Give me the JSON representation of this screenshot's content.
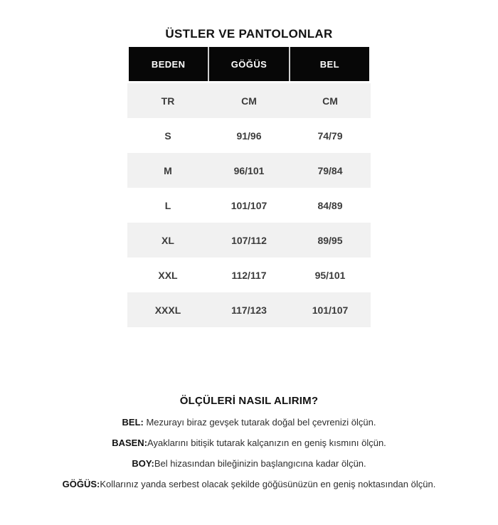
{
  "page": {
    "title": "ÜSTLER VE PANTOLONLAR"
  },
  "size_table": {
    "headers": [
      "BEDEN",
      "GÖĞÜS",
      "BEL"
    ],
    "unit_row": [
      "TR",
      "CM",
      "CM"
    ],
    "rows": [
      [
        "S",
        "91/96",
        "74/79"
      ],
      [
        "M",
        "96/101",
        "79/84"
      ],
      [
        "L",
        "101/107",
        "84/89"
      ],
      [
        "XL",
        "107/112",
        "89/95"
      ],
      [
        "XXL",
        "112/117",
        "95/101"
      ],
      [
        "XXXL",
        "117/123",
        "101/107"
      ]
    ]
  },
  "measurement_guide": {
    "heading": "ÖLÇÜLERİ NASIL ALIRIM?",
    "items": [
      {
        "label": "BEL:",
        "text": " Mezurayı biraz gevşek tutarak doğal bel çevrenizi ölçün."
      },
      {
        "label": "BASEN:",
        "text": "Ayaklarını bitişik tutarak kalçanızın en geniş kısmını ölçün."
      },
      {
        "label": "BOY:",
        "text": "Bel hizasından bileğinizin başlangıcına kadar ölçün."
      },
      {
        "label": "GÖĞÜS:",
        "text": "Kollarınız yanda serbest olacak şekilde göğüsünüzün en geniş noktasından ölçün."
      }
    ]
  },
  "colors": {
    "header_bg": "#070707",
    "header_text": "#ffffff",
    "header_divider": "#cfcfcf",
    "row_alt_bg": "#f1f1f1",
    "body_text": "#3c3c3c"
  }
}
